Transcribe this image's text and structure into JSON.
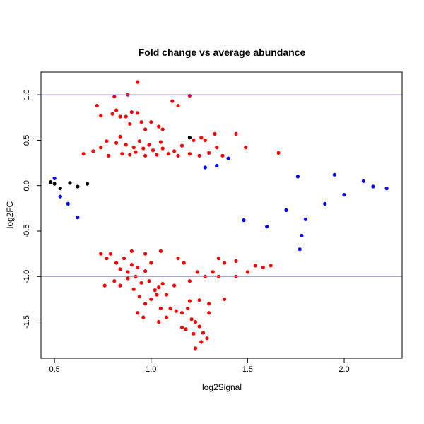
{
  "chart_data": {
    "type": "scatter",
    "title": "Fold change vs average abundance",
    "xlabel": "log2Signal",
    "ylabel": "log2FC",
    "xlim": [
      0.43,
      2.3
    ],
    "ylim": [
      -1.9,
      1.25
    ],
    "x_ticks": [
      {
        "value": 0.5,
        "label": "0.5"
      },
      {
        "value": 1.0,
        "label": "1.0"
      },
      {
        "value": 1.5,
        "label": "1.5"
      },
      {
        "value": 2.0,
        "label": "2.0"
      }
    ],
    "y_ticks": [
      {
        "value": 1.0,
        "label": "1.0"
      },
      {
        "value": 0.5,
        "label": "0.5"
      },
      {
        "value": 0.0,
        "label": "0.0"
      },
      {
        "value": -0.5,
        "label": "-0.5"
      },
      {
        "value": -1.0,
        "label": "-1.0"
      },
      {
        "value": -1.5,
        "label": "-1.5"
      }
    ],
    "hlines": [
      {
        "y": 1.0,
        "color": "#8080ff"
      },
      {
        "y": -1.0,
        "color": "#8080ff"
      }
    ],
    "grid": false,
    "legend": "none",
    "colors": {
      "background_points": "#0000ff",
      "highlight_points": "#ff0000",
      "mean_points": "#000000"
    },
    "series": [
      {
        "color": "#ff0000",
        "points": [
          [
            0.81,
            0.98
          ],
          [
            0.88,
            1.0
          ],
          [
            0.93,
            1.14
          ],
          [
            1.2,
            0.99
          ],
          [
            1.11,
            0.93
          ],
          [
            1.14,
            0.88
          ],
          [
            1.26,
            0.53
          ],
          [
            0.72,
            0.88
          ],
          [
            0.8,
            0.79
          ],
          [
            0.82,
            0.83
          ],
          [
            0.84,
            0.76
          ],
          [
            0.9,
            0.81
          ],
          [
            0.93,
            0.8
          ],
          [
            0.87,
            0.76
          ],
          [
            0.74,
            0.77
          ],
          [
            0.89,
            0.68
          ],
          [
            0.95,
            0.7
          ],
          [
            1.0,
            0.7
          ],
          [
            0.97,
            0.62
          ],
          [
            1.04,
            0.65
          ],
          [
            1.06,
            0.62
          ],
          [
            1.05,
            0.48
          ],
          [
            1.22,
            0.5
          ],
          [
            1.28,
            0.5
          ],
          [
            1.33,
            0.57
          ],
          [
            1.44,
            0.57
          ],
          [
            1.34,
            0.42
          ],
          [
            1.49,
            0.42
          ],
          [
            1.66,
            0.36
          ],
          [
            0.65,
            0.35
          ],
          [
            0.7,
            0.38
          ],
          [
            0.74,
            0.42
          ],
          [
            0.77,
            0.49
          ],
          [
            0.82,
            0.47
          ],
          [
            0.84,
            0.54
          ],
          [
            0.87,
            0.45
          ],
          [
            0.91,
            0.42
          ],
          [
            0.94,
            0.49
          ],
          [
            0.96,
            0.41
          ],
          [
            0.99,
            0.45
          ],
          [
            1.01,
            0.39
          ],
          [
            1.06,
            0.41
          ],
          [
            1.09,
            0.35
          ],
          [
            1.12,
            0.38
          ],
          [
            1.16,
            0.44
          ],
          [
            1.2,
            0.35
          ],
          [
            1.25,
            0.33
          ],
          [
            1.3,
            0.36
          ],
          [
            1.37,
            0.33
          ],
          [
            0.78,
            0.33
          ],
          [
            0.85,
            0.35
          ],
          [
            0.89,
            0.34
          ],
          [
            0.92,
            0.37
          ],
          [
            0.97,
            0.33
          ],
          [
            1.03,
            0.34
          ],
          [
            1.14,
            0.33
          ],
          [
            0.74,
            -0.75
          ],
          [
            0.77,
            -0.8
          ],
          [
            0.79,
            -0.75
          ],
          [
            0.82,
            -0.85
          ],
          [
            0.84,
            -0.92
          ],
          [
            0.86,
            -0.8
          ],
          [
            0.88,
            -0.95
          ],
          [
            0.9,
            -0.87
          ],
          [
            0.92,
            -1.0
          ],
          [
            0.93,
            -0.9
          ],
          [
            0.95,
            -1.07
          ],
          [
            0.97,
            -0.94
          ],
          [
            0.99,
            -1.05
          ],
          [
            1.0,
            -0.85
          ],
          [
            1.02,
            -1.15
          ],
          [
            1.04,
            -1.12
          ],
          [
            1.06,
            -1.08
          ],
          [
            1.08,
            -1.2
          ],
          [
            0.76,
            -1.1
          ],
          [
            0.81,
            -1.05
          ],
          [
            0.84,
            -1.1
          ],
          [
            0.88,
            -1.02
          ],
          [
            0.91,
            -1.14
          ],
          [
            0.94,
            -1.22
          ],
          [
            0.97,
            -1.3
          ],
          [
            1.0,
            -1.25
          ],
          [
            1.03,
            -1.2
          ],
          [
            1.05,
            -1.35
          ],
          [
            0.93,
            -1.4
          ],
          [
            0.96,
            -1.45
          ],
          [
            1.04,
            -1.5
          ],
          [
            1.08,
            -1.45
          ],
          [
            1.1,
            -1.35
          ],
          [
            1.13,
            -1.38
          ],
          [
            1.16,
            -1.4
          ],
          [
            1.19,
            -1.35
          ],
          [
            1.21,
            -1.47
          ],
          [
            1.23,
            -1.5
          ],
          [
            1.25,
            -1.55
          ],
          [
            1.27,
            -1.62
          ],
          [
            1.29,
            -1.68
          ],
          [
            1.26,
            -1.72
          ],
          [
            1.23,
            -1.79
          ],
          [
            1.22,
            -1.63
          ],
          [
            1.18,
            -1.58
          ],
          [
            1.16,
            -1.56
          ],
          [
            1.3,
            -1.4
          ],
          [
            1.3,
            -1.3
          ],
          [
            1.25,
            -1.26
          ],
          [
            1.2,
            -1.27
          ],
          [
            1.38,
            -1.25
          ],
          [
            1.14,
            -0.8
          ],
          [
            1.17,
            -0.85
          ],
          [
            1.2,
            -1.05
          ],
          [
            1.24,
            -0.95
          ],
          [
            1.28,
            -1.0
          ],
          [
            1.32,
            -0.95
          ],
          [
            1.35,
            -0.8
          ],
          [
            1.38,
            -0.85
          ],
          [
            1.44,
            -0.83
          ],
          [
            1.5,
            -0.95
          ],
          [
            1.54,
            -0.88
          ],
          [
            1.58,
            -0.9
          ],
          [
            1.62,
            -0.88
          ],
          [
            1.44,
            -1.0
          ],
          [
            1.35,
            -1.0
          ],
          [
            1.12,
            -1.1
          ],
          [
            1.05,
            -0.72
          ],
          [
            0.97,
            -0.75
          ],
          [
            0.9,
            -0.72
          ]
        ]
      },
      {
        "color": "#000000",
        "points": [
          [
            1.2,
            0.53
          ],
          [
            0.48,
            0.04
          ],
          [
            0.5,
            0.02
          ],
          [
            0.53,
            -0.03
          ],
          [
            0.58,
            0.03
          ],
          [
            0.62,
            -0.01
          ],
          [
            0.67,
            0.02
          ]
        ]
      },
      {
        "color": "#0000ff",
        "points": [
          [
            1.77,
            -0.7
          ],
          [
            1.78,
            -0.55
          ],
          [
            1.6,
            -0.45
          ],
          [
            1.48,
            -0.38
          ],
          [
            1.8,
            -0.37
          ],
          [
            1.7,
            -0.27
          ],
          [
            1.9,
            -0.2
          ],
          [
            2.0,
            -0.1
          ],
          [
            2.1,
            0.05
          ],
          [
            2.15,
            -0.01
          ],
          [
            2.22,
            -0.03
          ],
          [
            1.95,
            0.12
          ],
          [
            1.76,
            0.1
          ],
          [
            1.4,
            0.3
          ],
          [
            1.34,
            0.22
          ],
          [
            1.28,
            0.2
          ],
          [
            0.62,
            -0.35
          ],
          [
            0.57,
            -0.2
          ],
          [
            0.53,
            -0.12
          ],
          [
            0.5,
            0.08
          ]
        ]
      }
    ]
  }
}
